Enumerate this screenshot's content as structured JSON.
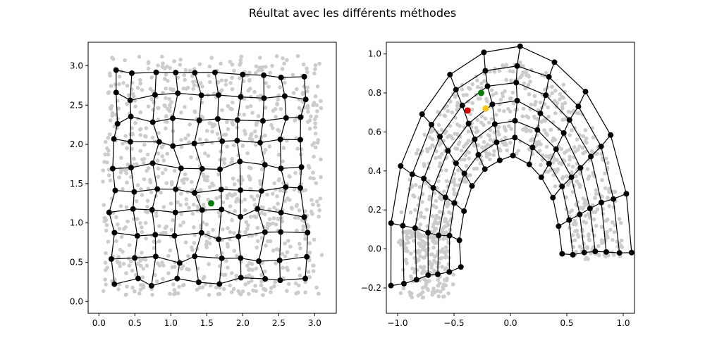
{
  "figure": {
    "suptitle": "Réultat avec les différents méthodes"
  },
  "chart_data": [
    {
      "type": "scatter",
      "name": "",
      "description_panel": "left",
      "xlim": [
        -0.15,
        3.3
      ],
      "ylim": [
        -0.15,
        3.3
      ],
      "xticks": [
        0.0,
        0.5,
        1.0,
        1.5,
        2.0,
        2.5,
        3.0
      ],
      "yticks": [
        0.0,
        0.5,
        1.0,
        1.5,
        2.0,
        2.5,
        3.0
      ],
      "xtick_labels": [
        "0.0",
        "0.5",
        "1.0",
        "1.5",
        "2.0",
        "2.5",
        "3.0"
      ],
      "ytick_labels": [
        "0.0",
        "0.5",
        "1.0",
        "1.5",
        "2.0",
        "2.5",
        "3.0"
      ],
      "grid": false,
      "sample_color": "#cccccc",
      "node_color": "#000000",
      "highlights": [
        {
          "x": 1.56,
          "y": 1.25,
          "color": "#0a7a0a"
        }
      ]
    },
    {
      "type": "scatter",
      "name": "",
      "description_panel": "right",
      "xlim": [
        -1.1,
        1.1
      ],
      "ylim": [
        -0.33,
        1.06
      ],
      "xticks": [
        -1.0,
        -0.5,
        0.0,
        0.5,
        1.0
      ],
      "yticks": [
        -0.2,
        0.0,
        0.2,
        0.4,
        0.6,
        0.8,
        1.0
      ],
      "xtick_labels": [
        "−1.0",
        "−0.5",
        "0.0",
        "0.5",
        "1.0"
      ],
      "ytick_labels": [
        "−0.2",
        "0.0",
        "0.2",
        "0.4",
        "0.6",
        "0.8",
        "1.0"
      ],
      "grid": false,
      "sample_color": "#cccccc",
      "node_color": "#000000",
      "highlights": [
        {
          "x": -0.26,
          "y": 0.8,
          "color": "#0a7a0a"
        },
        {
          "x": -0.38,
          "y": 0.71,
          "color": "#d40000"
        },
        {
          "x": -0.22,
          "y": 0.72,
          "color": "#f5c518"
        }
      ]
    }
  ]
}
